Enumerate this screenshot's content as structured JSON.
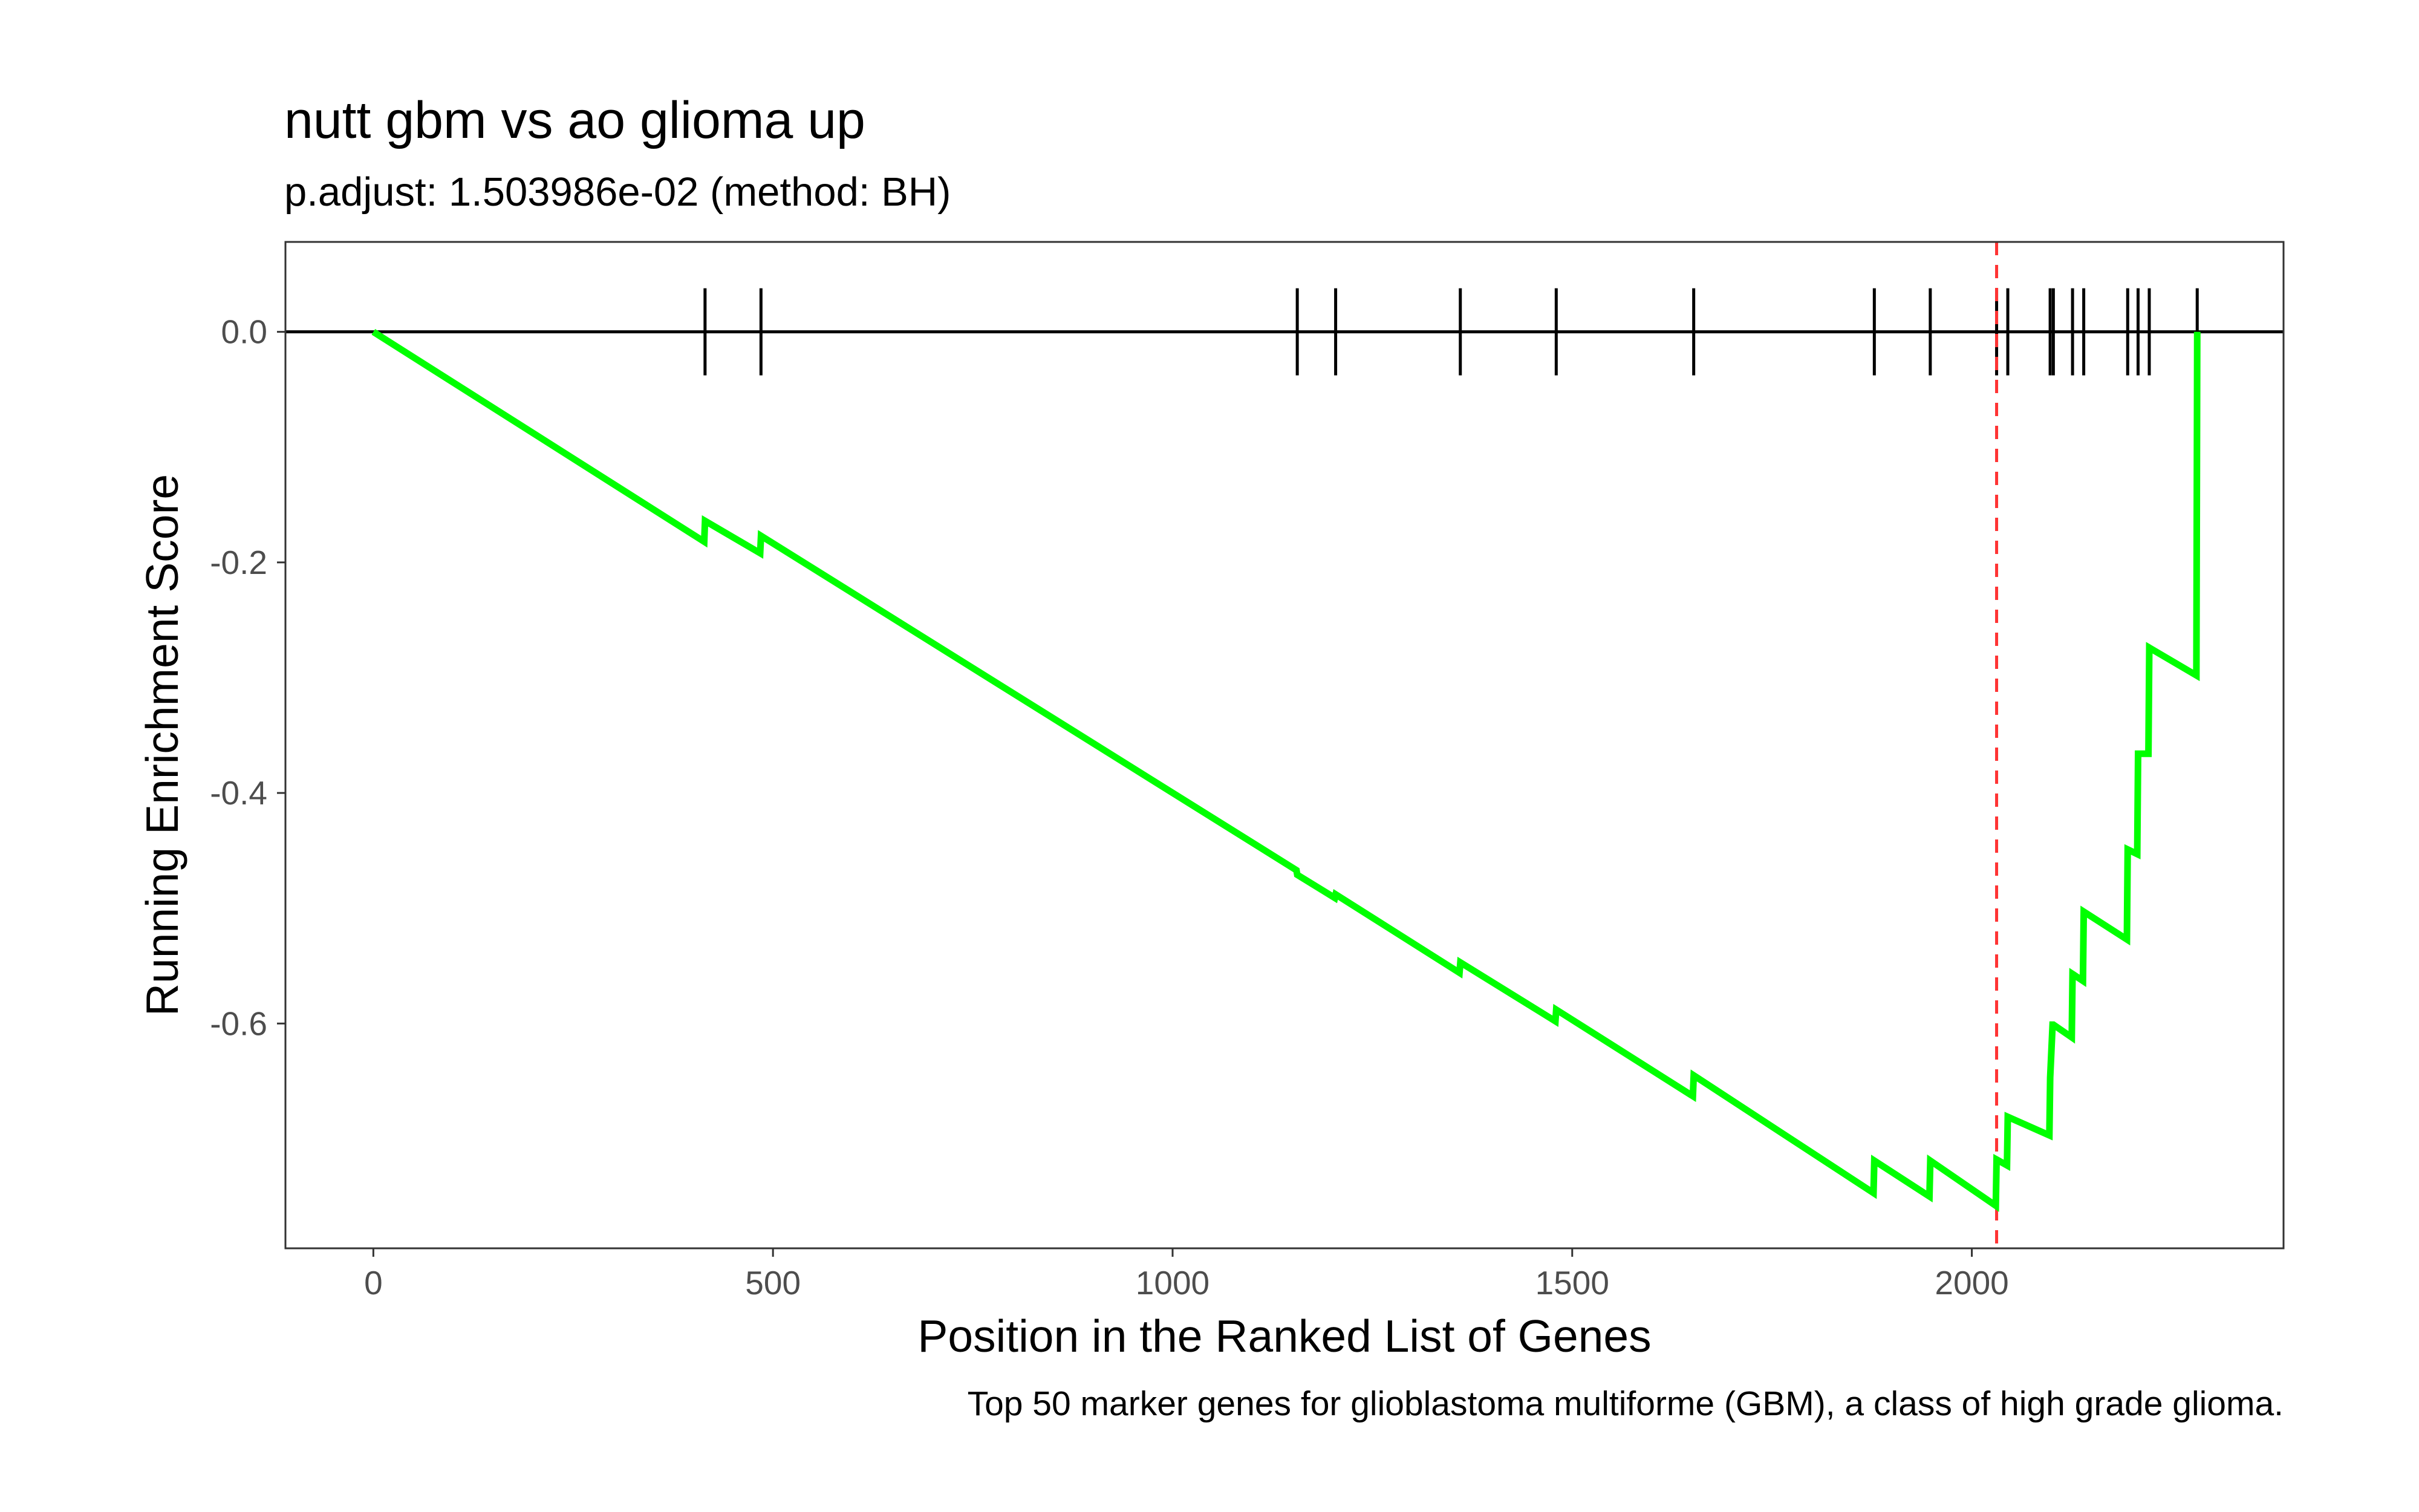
{
  "chart_data": {
    "type": "line",
    "title": "nutt gbm vs ao glioma up",
    "subtitle": "p.adjust: 1.503986e-02 (method: BH)",
    "xlabel": "Position in the Ranked List of Genes",
    "ylabel": "Running Enrichment Score",
    "caption": "Top 50 marker genes for glioblastoma multiforme (GBM), a class of high grade glioma.",
    "xlim": [
      -110,
      2390
    ],
    "ylim": [
      -0.795,
      0.078
    ],
    "x_ticks": [
      {
        "value": 0,
        "label": "0"
      },
      {
        "value": 500,
        "label": "500"
      },
      {
        "value": 1000,
        "label": "1000"
      },
      {
        "value": 1500,
        "label": "1500"
      },
      {
        "value": 2000,
        "label": "2000"
      }
    ],
    "y_ticks": [
      {
        "value": 0.0,
        "label": "0.0"
      },
      {
        "value": -0.2,
        "label": "-0.2"
      },
      {
        "value": -0.4,
        "label": "-0.4"
      },
      {
        "value": -0.6,
        "label": "-0.6"
      }
    ],
    "grid": false,
    "line_color": "#00ff00",
    "hit_color": "#000000",
    "peak_line_color": "#ff3333",
    "zero_line": 0.0,
    "peak_position": 2031,
    "hits": [
      415,
      485,
      1156,
      1204,
      1360,
      1480,
      1652,
      1878,
      1948,
      2031,
      2045,
      2098,
      2102,
      2126,
      2140,
      2195,
      2208,
      2222,
      2282
    ],
    "series": [
      {
        "x": [
          0,
          414,
          415,
          484,
          485,
          1155,
          1156,
          1203,
          1204,
          1359,
          1360,
          1479,
          1480,
          1651,
          1652,
          1877,
          1878,
          1947,
          1948,
          2030,
          2031,
          2044,
          2045,
          2097,
          2098,
          2101,
          2102,
          2125,
          2126,
          2139,
          2140,
          2194,
          2195,
          2207,
          2208,
          2221,
          2222,
          2281,
          2282
        ],
        "y": [
          0.0,
          -0.182,
          -0.164,
          -0.192,
          -0.177,
          -0.467,
          -0.471,
          -0.491,
          -0.488,
          -0.556,
          -0.547,
          -0.598,
          -0.588,
          -0.663,
          -0.645,
          -0.747,
          -0.719,
          -0.75,
          -0.719,
          -0.758,
          -0.718,
          -0.723,
          -0.681,
          -0.697,
          -0.647,
          -0.601,
          -0.601,
          -0.612,
          -0.557,
          -0.563,
          -0.503,
          -0.527,
          -0.449,
          -0.453,
          -0.366,
          -0.366,
          -0.274,
          -0.298,
          0.0
        ]
      }
    ]
  }
}
